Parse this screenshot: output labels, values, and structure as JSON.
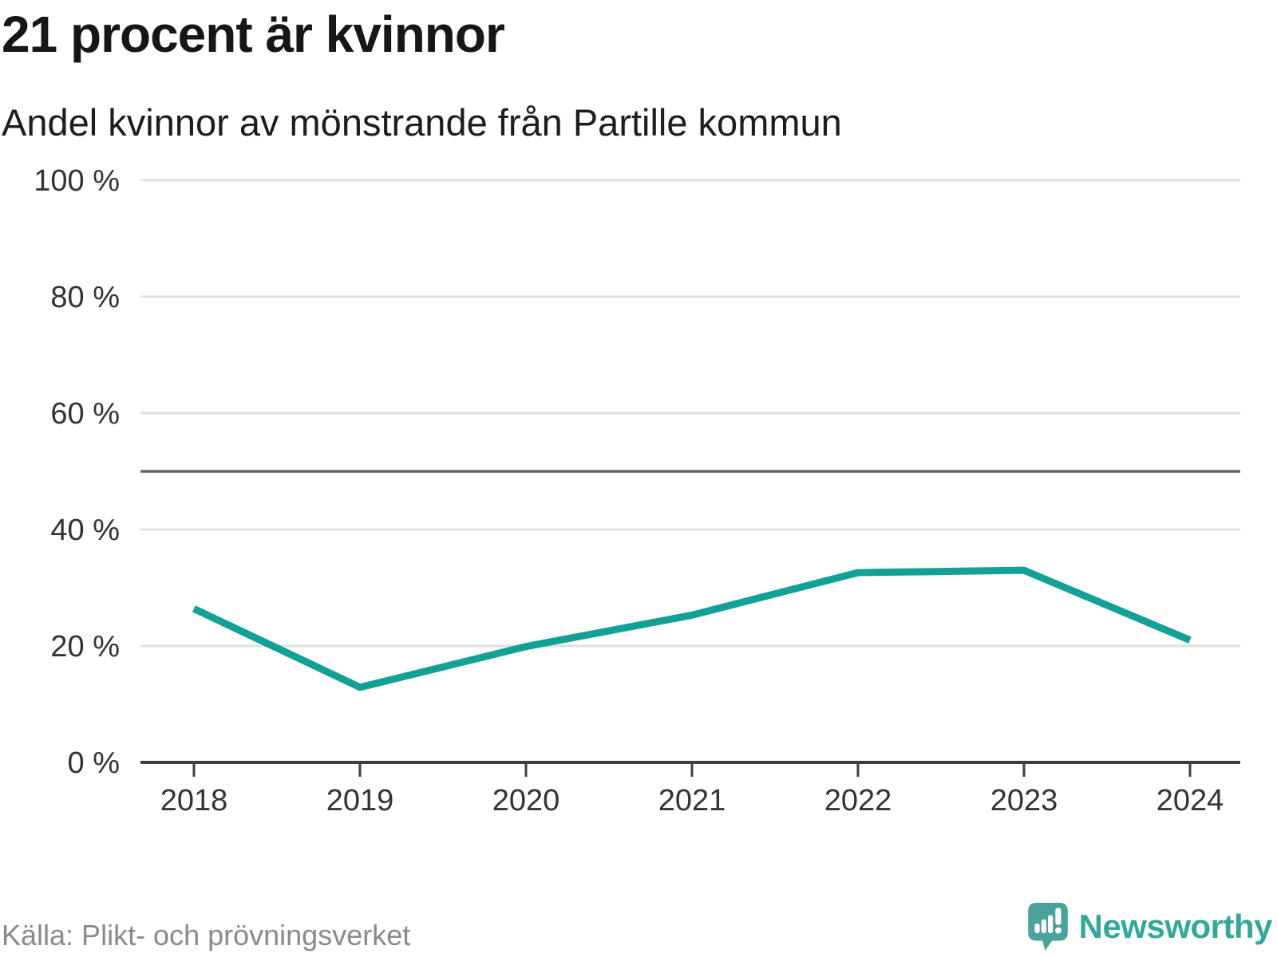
{
  "header": {
    "title": "21 procent är kvinnor",
    "subtitle": "Andel kvinnor av mönstrande från Partille kommun"
  },
  "footer": {
    "source": "Källa: Plikt- och prövningsverket",
    "brand": "Newsworthy"
  },
  "chart_data": {
    "type": "line",
    "title": "21 procent är kvinnor",
    "subtitle": "Andel kvinnor av mönstrande från Partille kommun",
    "categories": [
      "2018",
      "2019",
      "2020",
      "2021",
      "2022",
      "2023",
      "2024"
    ],
    "series": [
      {
        "name": "Andel kvinnor av mönstrande",
        "values": [
          26.4,
          12.9,
          19.9,
          25.3,
          32.6,
          33.0,
          21.0
        ]
      }
    ],
    "xlabel": "",
    "ylabel": "",
    "ylim": [
      0,
      100
    ],
    "yticks": [
      0,
      20,
      40,
      60,
      80,
      100
    ],
    "ytick_format": "{v} %",
    "reference_line": {
      "value": 50
    },
    "grid": true,
    "legend_position": "none",
    "line_color": "#12a195",
    "grid_color": "#e0e0e0",
    "axis_color": "#3d3d3d",
    "reference_line_color": "#636363",
    "label_color": "#333333"
  },
  "logo": {
    "icon_color": "#4aa29b",
    "icon_bar_color": "#ffffff"
  }
}
